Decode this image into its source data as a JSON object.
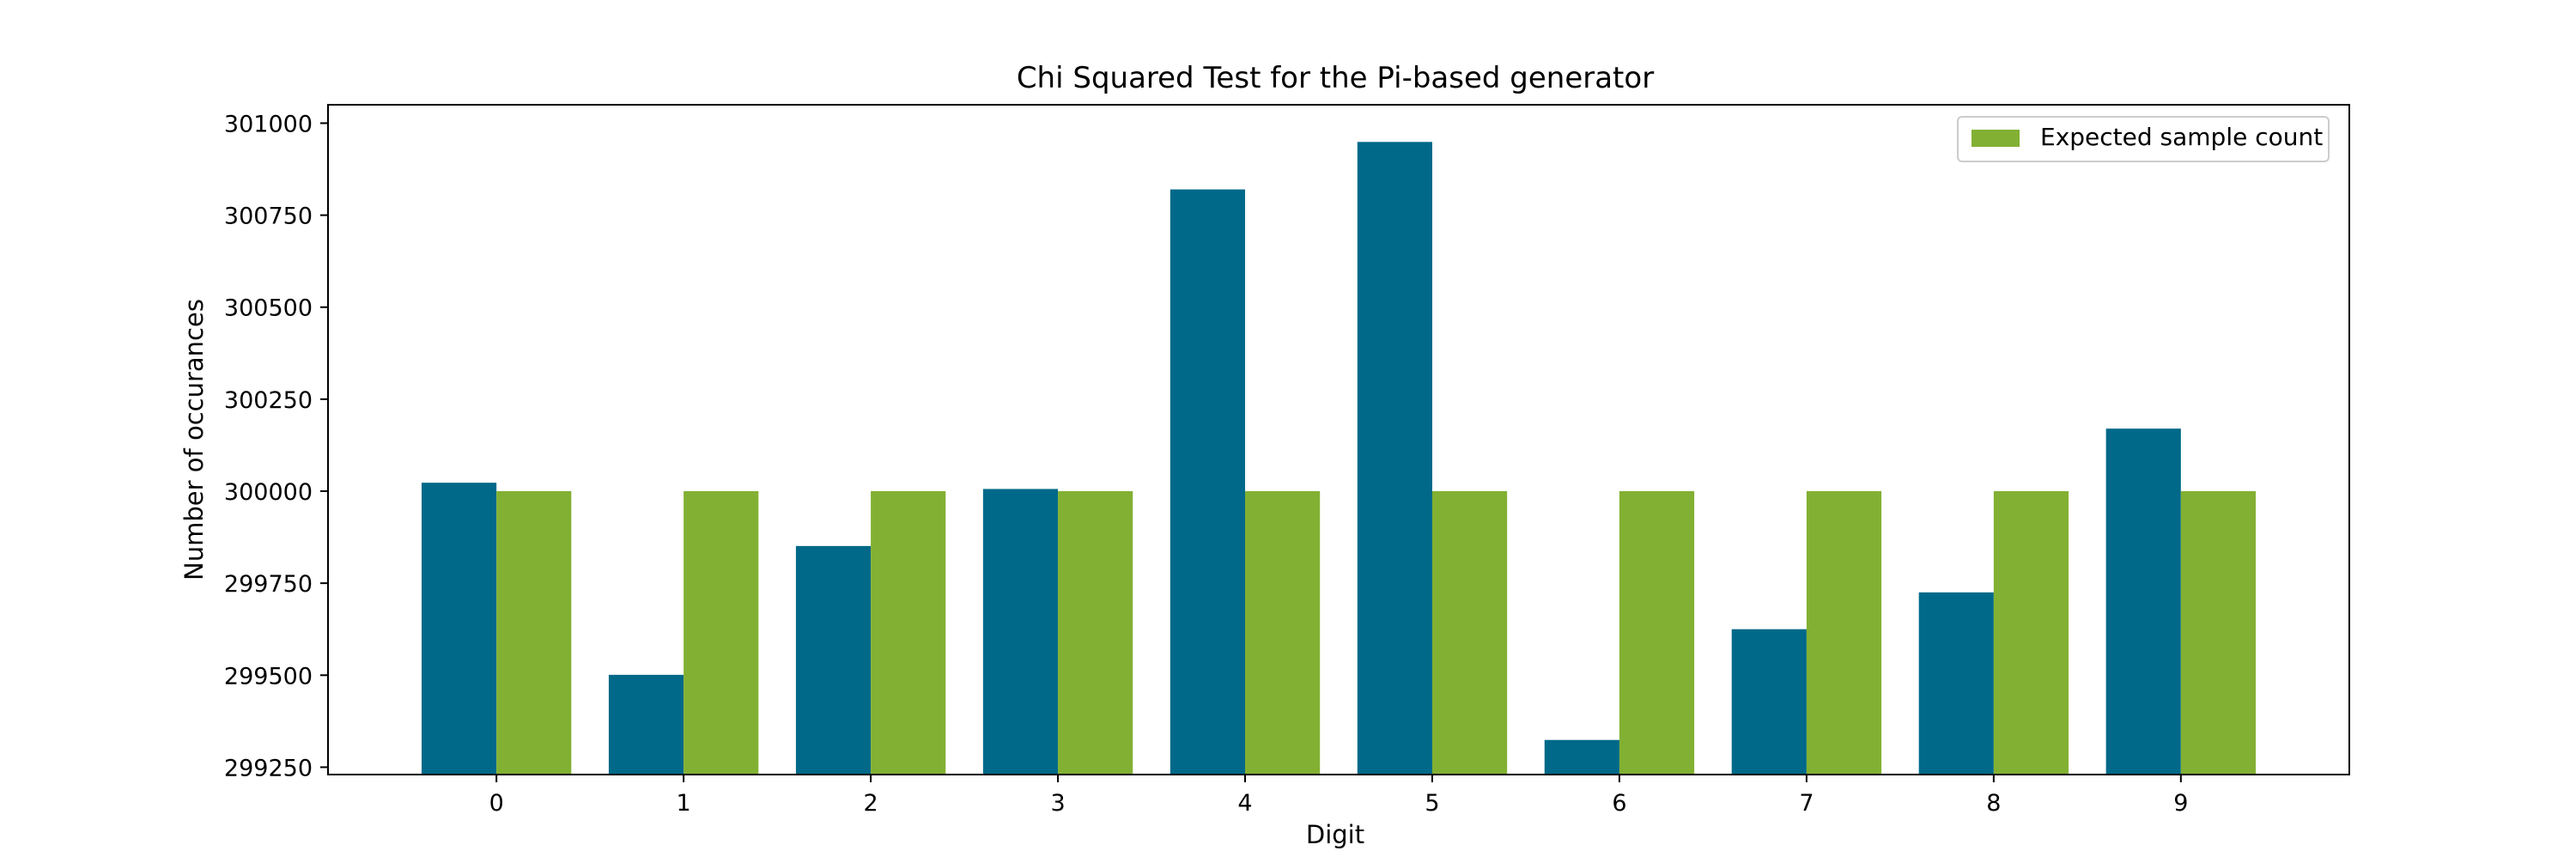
{
  "chart_data": {
    "type": "bar",
    "title": "Chi Squared Test for the Pi-based generator",
    "xlabel": "Digit",
    "ylabel": "Number of occurances",
    "categories": [
      "0",
      "1",
      "2",
      "3",
      "4",
      "5",
      "6",
      "7",
      "8",
      "9"
    ],
    "series": [
      {
        "name": "",
        "color": "#006989",
        "values": [
          300023,
          299501,
          299851,
          300006,
          300820,
          300949,
          299324,
          299625,
          299725,
          300170
        ]
      },
      {
        "name": "Expected sample count",
        "color": "#82b033",
        "values": [
          300000,
          300000,
          300000,
          300000,
          300000,
          300000,
          300000,
          300000,
          300000,
          300000
        ]
      }
    ],
    "yticks": [
      299250,
      299500,
      299750,
      300000,
      300250,
      300500,
      300750,
      301000
    ],
    "ylim": [
      299230,
      301050
    ],
    "legend": {
      "position": "top-right",
      "entries": [
        "Expected sample count"
      ]
    },
    "grid": false
  }
}
